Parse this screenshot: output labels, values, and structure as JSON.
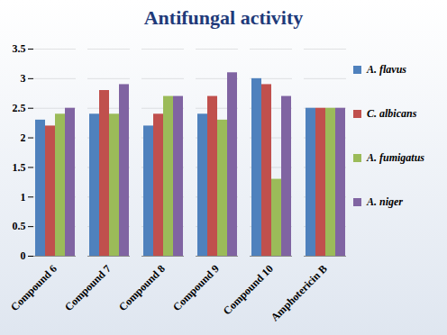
{
  "chart_data": {
    "type": "bar",
    "title": "Antifungal activity",
    "categories": [
      "Compound 6",
      "Compound 7",
      "Compound 8",
      "Compound 9",
      "Compound 10",
      "Amphotericin B"
    ],
    "series": [
      {
        "name": "A. flavus",
        "color": "#4f81bd",
        "values": [
          2.3,
          2.4,
          2.2,
          2.4,
          3.0,
          2.5
        ]
      },
      {
        "name": "C. albicans",
        "color": "#c0504d",
        "values": [
          2.2,
          2.8,
          2.4,
          2.7,
          2.9,
          2.5
        ]
      },
      {
        "name": "A. fumigatus",
        "color": "#9bbb59",
        "values": [
          2.4,
          2.4,
          2.7,
          2.3,
          1.3,
          2.5
        ]
      },
      {
        "name": "A. niger",
        "color": "#8064a2",
        "values": [
          2.5,
          2.9,
          2.7,
          3.1,
          2.7,
          2.5
        ]
      }
    ],
    "ylim": [
      0,
      3.5
    ],
    "yticks": [
      0,
      0.5,
      1,
      1.5,
      2,
      2.5,
      3,
      3.5
    ],
    "grid": true,
    "legend": "right"
  }
}
